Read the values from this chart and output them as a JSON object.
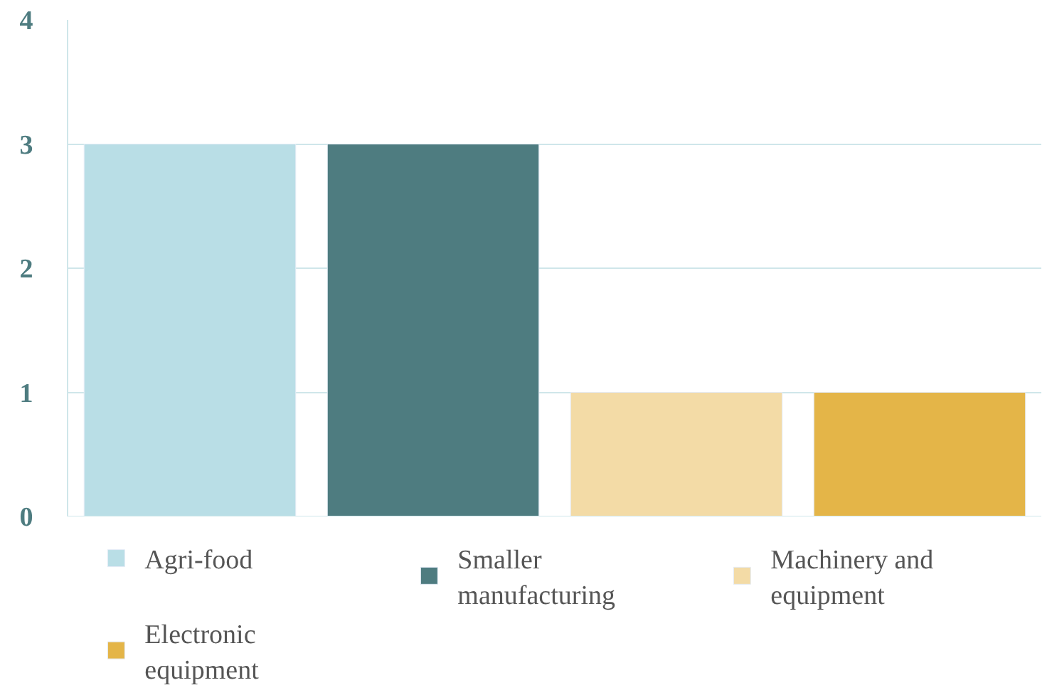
{
  "chart_data": {
    "type": "bar",
    "categories": [
      null,
      null,
      null,
      null
    ],
    "series": [
      {
        "name": "Agri-food",
        "color": "#b9dee6",
        "values": [
          3,
          null,
          null,
          null
        ]
      },
      {
        "name": "Smaller manufacturing",
        "color": "#4e7c80",
        "values": [
          null,
          3,
          null,
          null
        ]
      },
      {
        "name": "Machinery and equipment",
        "color": "#f3dba6",
        "values": [
          null,
          null,
          1,
          null
        ]
      },
      {
        "name": "Electronic equipment",
        "color": "#e4b548",
        "values": [
          null,
          null,
          null,
          1
        ]
      }
    ],
    "ylim": [
      0,
      4
    ],
    "yticks": [
      0,
      1,
      2,
      3,
      4
    ],
    "grid": "y",
    "legend": "bottom",
    "tick_labels": "y"
  }
}
